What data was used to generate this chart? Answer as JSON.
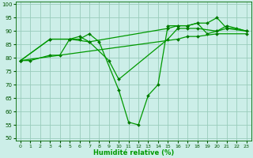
{
  "xlabel": "Humidité relative (%)",
  "background_color": "#cceee8",
  "grid_color": "#99ccbb",
  "line_color": "#009900",
  "marker_color": "#007700",
  "xlim": [
    -0.5,
    23.5
  ],
  "ylim": [
    49,
    101
  ],
  "yticks": [
    50,
    55,
    60,
    65,
    70,
    75,
    80,
    85,
    90,
    95,
    100
  ],
  "xticks": [
    0,
    1,
    2,
    3,
    4,
    5,
    6,
    7,
    8,
    9,
    10,
    11,
    12,
    13,
    14,
    15,
    16,
    17,
    18,
    19,
    20,
    21,
    22,
    23
  ],
  "series": [
    {
      "x": [
        0,
        1,
        3,
        4,
        5,
        6,
        7,
        8,
        10,
        11,
        12,
        13,
        14,
        15,
        16,
        17,
        18,
        19,
        20,
        21,
        22,
        23
      ],
      "y": [
        79,
        79,
        81,
        81,
        87,
        87,
        89,
        86,
        68,
        56,
        55,
        66,
        70,
        92,
        92,
        92,
        93,
        93,
        95,
        91,
        91,
        90
      ]
    },
    {
      "x": [
        0,
        3,
        5,
        6,
        7,
        15,
        16,
        17,
        18,
        19,
        20,
        21,
        23
      ],
      "y": [
        79,
        87,
        87,
        88,
        86,
        91,
        92,
        92,
        93,
        89,
        90,
        92,
        90
      ]
    },
    {
      "x": [
        0,
        3,
        5,
        7,
        9,
        10,
        15,
        16,
        17,
        18,
        20,
        21,
        23
      ],
      "y": [
        79,
        87,
        87,
        86,
        79,
        72,
        87,
        91,
        91,
        91,
        90,
        91,
        90
      ]
    },
    {
      "x": [
        0,
        16,
        17,
        18,
        20,
        23
      ],
      "y": [
        79,
        87,
        88,
        88,
        89,
        89
      ]
    }
  ]
}
